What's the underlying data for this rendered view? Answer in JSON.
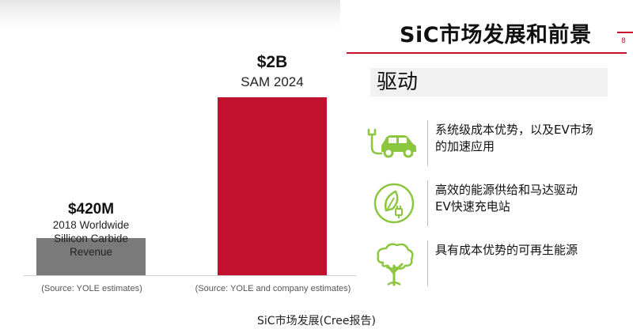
{
  "header": {
    "title": "SiC市场发展和前景",
    "page_number": "8",
    "accent_color": "#c8102e"
  },
  "chart_data": {
    "type": "bar",
    "categories": [
      "2018 Worldwide Sillicon Carbide Revenue",
      "SAM 2024"
    ],
    "values_musd": [
      420,
      2000
    ],
    "value_labels": [
      "$420M",
      "$2B"
    ],
    "descriptions": [
      [
        "2018 Worldwide",
        "Sillicon Carbide",
        "Revenue"
      ],
      [
        "SAM 2024"
      ]
    ],
    "sources": [
      "(Source: YOLE estimates)",
      "(Source: YOLE and company estimates)"
    ],
    "colors": [
      "#7a7a7a",
      "#c1112f"
    ]
  },
  "drivers": {
    "heading": "驱动",
    "icon_color": "#8cc63f",
    "items": [
      {
        "icon": "electric-car-icon",
        "lines": [
          "系统级成本优势，以及EV市场",
          "的加速应用"
        ]
      },
      {
        "icon": "eco-leaf-plug-icon",
        "lines": [
          "高效的能源供给和马达驱动",
          "EV快速充电站"
        ]
      },
      {
        "icon": "tree-icon",
        "lines": [
          "具有成本优势的可再生能源"
        ]
      }
    ]
  },
  "footer": {
    "caption": "SiC市场发展(Cree报告)"
  }
}
